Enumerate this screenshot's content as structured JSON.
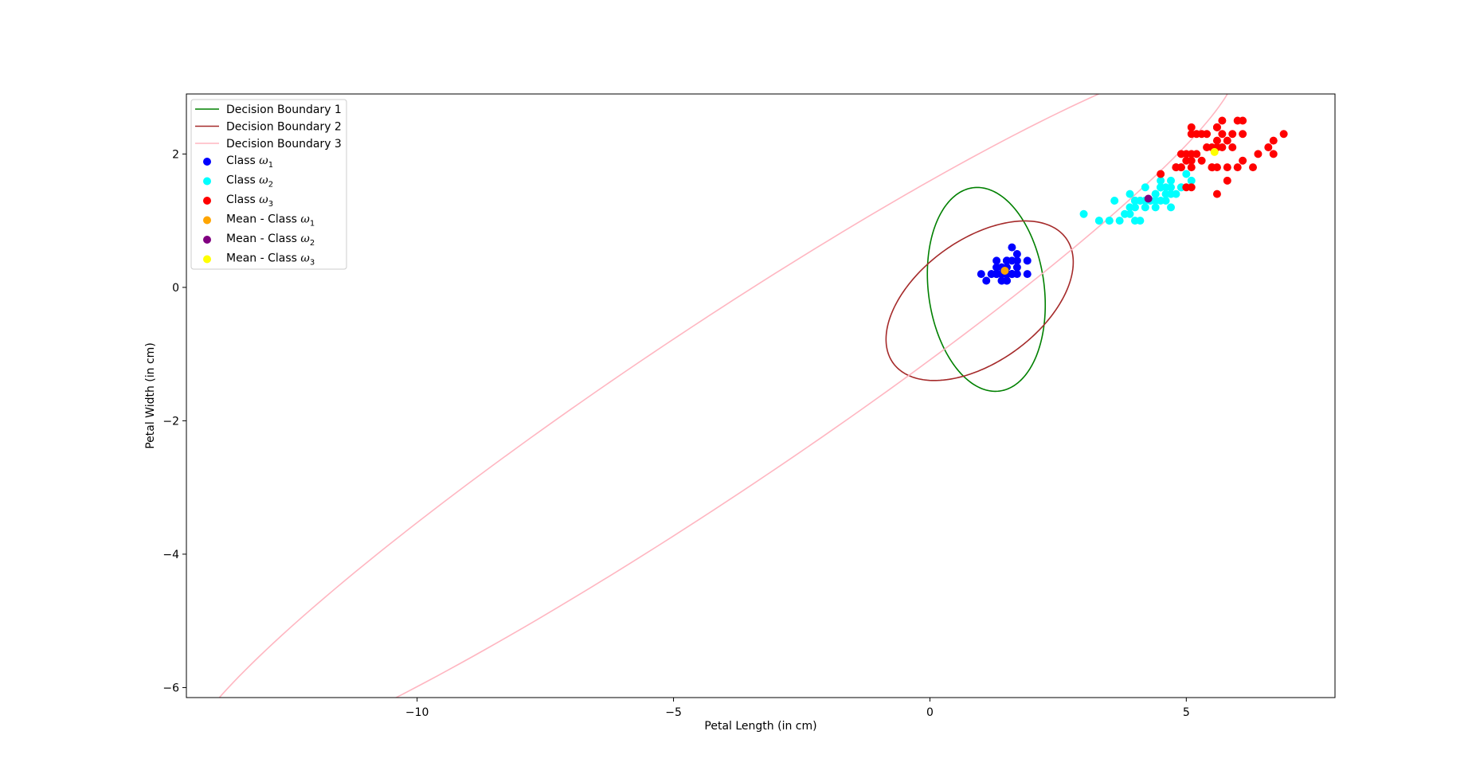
{
  "chart_data": {
    "type": "scatter",
    "xlabel": "Petal Length (in cm)",
    "ylabel": "Petal Width (in cm)",
    "xlim": [
      -14.5,
      7.9
    ],
    "ylim": [
      -6.15,
      2.9
    ],
    "xticks": [
      -10,
      -5,
      0,
      5
    ],
    "yticks": [
      -6,
      -4,
      -2,
      0,
      2
    ],
    "xtick_labels": [
      "−10",
      "−5",
      "0",
      "5"
    ],
    "ytick_labels": [
      "−6",
      "−4",
      "−2",
      "0",
      "2"
    ],
    "grid": false,
    "legend_position": "upper-left",
    "boundaries": [
      {
        "name": "Decision Boundary 1",
        "color": "#008000",
        "type": "ellipse",
        "center": [
          1.1,
          -0.03
        ],
        "rx": 1.55,
        "ry": 1.12,
        "angle_deg": -76
      },
      {
        "name": "Decision Boundary 2",
        "color": "#a52a2a",
        "type": "ellipse",
        "center": [
          0.97,
          -0.2
        ],
        "rx": 1.95,
        "ry": 0.98,
        "angle_deg": 24
      },
      {
        "name": "Decision Boundary 3",
        "color": "#ffb6c1",
        "type": "ellipse",
        "center": [
          -4.3,
          -1.9
        ],
        "rx": 11.5,
        "ry": 1.32,
        "angle_deg": 27
      }
    ],
    "series": [
      {
        "name": "Class ω1",
        "label_main": "Class ",
        "label_sub": "1",
        "color": "#0000ff",
        "points": [
          [
            1.4,
            0.2
          ],
          [
            1.4,
            0.2
          ],
          [
            1.3,
            0.2
          ],
          [
            1.5,
            0.2
          ],
          [
            1.4,
            0.2
          ],
          [
            1.7,
            0.4
          ],
          [
            1.4,
            0.3
          ],
          [
            1.5,
            0.2
          ],
          [
            1.4,
            0.2
          ],
          [
            1.5,
            0.1
          ],
          [
            1.5,
            0.2
          ],
          [
            1.6,
            0.2
          ],
          [
            1.4,
            0.1
          ],
          [
            1.1,
            0.1
          ],
          [
            1.2,
            0.2
          ],
          [
            1.5,
            0.4
          ],
          [
            1.3,
            0.4
          ],
          [
            1.4,
            0.3
          ],
          [
            1.7,
            0.3
          ],
          [
            1.5,
            0.3
          ],
          [
            1.7,
            0.2
          ],
          [
            1.5,
            0.4
          ],
          [
            1.0,
            0.2
          ],
          [
            1.7,
            0.5
          ],
          [
            1.9,
            0.2
          ],
          [
            1.6,
            0.2
          ],
          [
            1.6,
            0.4
          ],
          [
            1.5,
            0.2
          ],
          [
            1.4,
            0.2
          ],
          [
            1.6,
            0.2
          ],
          [
            1.6,
            0.2
          ],
          [
            1.5,
            0.4
          ],
          [
            1.5,
            0.1
          ],
          [
            1.4,
            0.2
          ],
          [
            1.5,
            0.2
          ],
          [
            1.2,
            0.2
          ],
          [
            1.3,
            0.2
          ],
          [
            1.4,
            0.1
          ],
          [
            1.3,
            0.2
          ],
          [
            1.5,
            0.2
          ],
          [
            1.3,
            0.3
          ],
          [
            1.3,
            0.3
          ],
          [
            1.3,
            0.2
          ],
          [
            1.6,
            0.6
          ],
          [
            1.9,
            0.4
          ],
          [
            1.4,
            0.3
          ],
          [
            1.6,
            0.2
          ],
          [
            1.4,
            0.2
          ],
          [
            1.5,
            0.2
          ],
          [
            1.4,
            0.2
          ]
        ]
      },
      {
        "name": "Class ω2",
        "label_main": "Class ",
        "label_sub": "2",
        "color": "#00ffff",
        "points": [
          [
            4.7,
            1.4
          ],
          [
            4.5,
            1.5
          ],
          [
            4.9,
            1.5
          ],
          [
            4.0,
            1.3
          ],
          [
            4.6,
            1.5
          ],
          [
            4.5,
            1.3
          ],
          [
            4.7,
            1.6
          ],
          [
            3.3,
            1.0
          ],
          [
            4.6,
            1.3
          ],
          [
            3.9,
            1.4
          ],
          [
            3.5,
            1.0
          ],
          [
            4.2,
            1.5
          ],
          [
            4.0,
            1.0
          ],
          [
            4.7,
            1.4
          ],
          [
            3.6,
            1.3
          ],
          [
            4.4,
            1.4
          ],
          [
            4.5,
            1.5
          ],
          [
            4.1,
            1.0
          ],
          [
            4.5,
            1.5
          ],
          [
            3.9,
            1.1
          ],
          [
            4.8,
            1.8
          ],
          [
            4.0,
            1.3
          ],
          [
            4.9,
            1.5
          ],
          [
            4.7,
            1.2
          ],
          [
            4.3,
            1.3
          ],
          [
            4.4,
            1.4
          ],
          [
            4.8,
            1.4
          ],
          [
            5.0,
            1.7
          ],
          [
            4.5,
            1.5
          ],
          [
            3.5,
            1.0
          ],
          [
            3.8,
            1.1
          ],
          [
            3.7,
            1.0
          ],
          [
            3.9,
            1.2
          ],
          [
            5.1,
            1.6
          ],
          [
            4.5,
            1.5
          ],
          [
            4.5,
            1.6
          ],
          [
            4.7,
            1.5
          ],
          [
            4.4,
            1.3
          ],
          [
            4.1,
            1.3
          ],
          [
            4.0,
            1.3
          ],
          [
            4.4,
            1.2
          ],
          [
            4.6,
            1.4
          ],
          [
            4.0,
            1.2
          ],
          [
            3.3,
            1.0
          ],
          [
            4.2,
            1.3
          ],
          [
            4.2,
            1.2
          ],
          [
            4.2,
            1.3
          ],
          [
            4.3,
            1.3
          ],
          [
            3.0,
            1.1
          ],
          [
            4.1,
            1.3
          ]
        ]
      },
      {
        "name": "Class ω3",
        "label_main": "Class ",
        "label_sub": "3",
        "color": "#ff0000",
        "points": [
          [
            6.0,
            2.5
          ],
          [
            5.1,
            1.9
          ],
          [
            5.9,
            2.1
          ],
          [
            5.6,
            1.8
          ],
          [
            5.8,
            2.2
          ],
          [
            6.6,
            2.1
          ],
          [
            4.5,
            1.7
          ],
          [
            6.3,
            1.8
          ],
          [
            5.8,
            1.8
          ],
          [
            6.1,
            2.5
          ],
          [
            5.1,
            2.0
          ],
          [
            5.3,
            1.9
          ],
          [
            5.5,
            2.1
          ],
          [
            5.0,
            2.0
          ],
          [
            5.1,
            2.4
          ],
          [
            5.3,
            2.3
          ],
          [
            5.5,
            1.8
          ],
          [
            6.7,
            2.2
          ],
          [
            6.9,
            2.3
          ],
          [
            5.0,
            1.5
          ],
          [
            5.7,
            2.3
          ],
          [
            4.9,
            2.0
          ],
          [
            6.7,
            2.0
          ],
          [
            4.9,
            1.8
          ],
          [
            5.7,
            2.1
          ],
          [
            6.0,
            1.8
          ],
          [
            4.8,
            1.8
          ],
          [
            4.9,
            1.8
          ],
          [
            5.6,
            2.1
          ],
          [
            5.8,
            1.6
          ],
          [
            6.1,
            1.9
          ],
          [
            6.4,
            2.0
          ],
          [
            5.6,
            2.2
          ],
          [
            5.1,
            1.5
          ],
          [
            5.6,
            1.4
          ],
          [
            6.1,
            2.3
          ],
          [
            5.6,
            2.4
          ],
          [
            5.5,
            1.8
          ],
          [
            4.8,
            1.8
          ],
          [
            5.4,
            2.1
          ],
          [
            5.6,
            2.4
          ],
          [
            5.1,
            2.3
          ],
          [
            5.9,
            2.3
          ],
          [
            5.7,
            2.5
          ],
          [
            5.2,
            2.3
          ],
          [
            5.0,
            1.9
          ],
          [
            5.2,
            2.0
          ],
          [
            5.4,
            2.3
          ],
          [
            5.1,
            1.8
          ]
        ]
      },
      {
        "name": "Mean - Class ω1",
        "label_main": "Mean - Class ",
        "label_sub": "1",
        "color": "#ffa500",
        "points": [
          [
            1.46,
            0.25
          ]
        ]
      },
      {
        "name": "Mean - Class ω2",
        "label_main": "Mean - Class ",
        "label_sub": "2",
        "color": "#800080",
        "points": [
          [
            4.26,
            1.33
          ]
        ]
      },
      {
        "name": "Mean - Class ω3",
        "label_main": "Mean - Class ",
        "label_sub": "3",
        "color": "#ffff00",
        "points": [
          [
            5.55,
            2.03
          ]
        ]
      }
    ]
  }
}
